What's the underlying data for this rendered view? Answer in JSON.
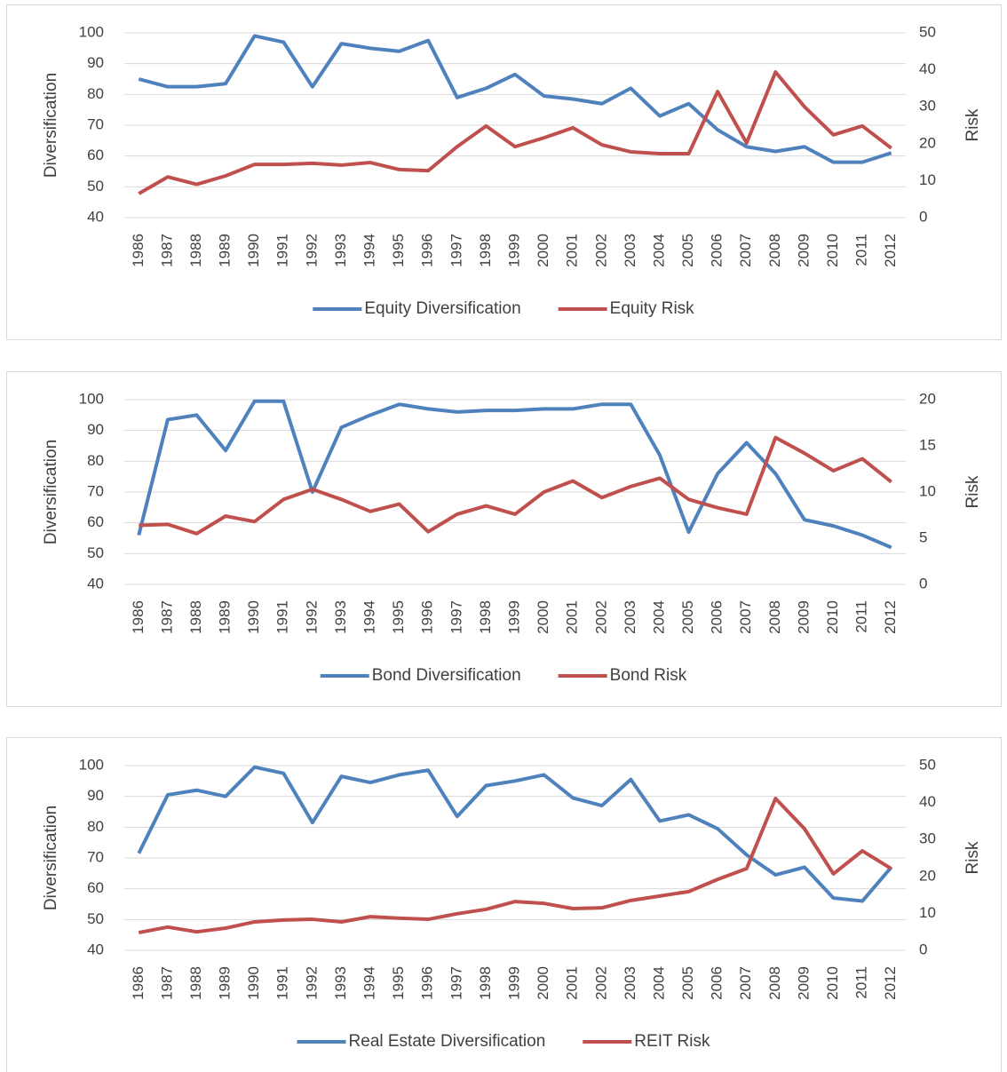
{
  "chart_data": [
    {
      "type": "line",
      "ylabel": "Diversification",
      "y2label": "Risk",
      "categories": [
        "1986",
        "1987",
        "1988",
        "1989",
        "1990",
        "1991",
        "1992",
        "1993",
        "1994",
        "1995",
        "1996",
        "1997",
        "1998",
        "1999",
        "2000",
        "2001",
        "2002",
        "2003",
        "2004",
        "2005",
        "2006",
        "2007",
        "2008",
        "2009",
        "2010",
        "2011",
        "2012"
      ],
      "series": [
        {
          "name": "Equity Diversification",
          "color": "#4f81bd",
          "axis": "y",
          "values": [
            85,
            82.5,
            82.5,
            83.5,
            99,
            97,
            82.5,
            96.5,
            95,
            94,
            97.5,
            79,
            82,
            86.5,
            79.5,
            78.5,
            77,
            82,
            73,
            77,
            68.5,
            63,
            61.5,
            63,
            58,
            58,
            61
          ]
        },
        {
          "name": "Equity Risk",
          "color": "#c0504d",
          "axis": "y2",
          "values": [
            6.5,
            11,
            9,
            11.3,
            14.4,
            14.4,
            14.7,
            14.2,
            14.9,
            13,
            12.7,
            19.2,
            24.8,
            19.2,
            21.6,
            24.3,
            19.7,
            17.8,
            17.3,
            17.3,
            34.1,
            20.2,
            39.4,
            30,
            22.4,
            24.8,
            18.8
          ]
        }
      ],
      "ylim": [
        40,
        100
      ],
      "yticks": [
        40,
        50,
        60,
        70,
        80,
        90,
        100
      ],
      "y2lim": [
        0,
        50
      ],
      "y2ticks": [
        0,
        10,
        20,
        30,
        40,
        50
      ],
      "grid": true,
      "legend": "bottom"
    },
    {
      "type": "line",
      "ylabel": "Diversification",
      "y2label": "Risk",
      "categories": [
        "1986",
        "1987",
        "1988",
        "1989",
        "1990",
        "1991",
        "1992",
        "1993",
        "1994",
        "1995",
        "1996",
        "1997",
        "1998",
        "1999",
        "2000",
        "2001",
        "2002",
        "2003",
        "2004",
        "2005",
        "2006",
        "2007",
        "2008",
        "2009",
        "2010",
        "2011",
        "2012"
      ],
      "series": [
        {
          "name": "Bond Diversification",
          "color": "#4f81bd",
          "axis": "y",
          "values": [
            56,
            93.5,
            95,
            83.5,
            99.5,
            99.5,
            70,
            91,
            95,
            98.5,
            97,
            96,
            96.5,
            96.5,
            97,
            97,
            98.5,
            98.5,
            82,
            57,
            76,
            86,
            76,
            61,
            59,
            56,
            52
          ]
        },
        {
          "name": "Bond Risk",
          "color": "#c0504d",
          "axis": "y2",
          "values": [
            6.4,
            6.5,
            5.5,
            7.4,
            6.8,
            9.2,
            10.3,
            9.2,
            7.9,
            8.7,
            5.7,
            7.6,
            8.5,
            7.6,
            10,
            11.2,
            9.4,
            10.6,
            11.5,
            9.2,
            8.3,
            7.6,
            15.9,
            14.2,
            12.3,
            13.6,
            11.1
          ]
        }
      ],
      "ylim": [
        40,
        100
      ],
      "yticks": [
        40,
        50,
        60,
        70,
        80,
        90,
        100
      ],
      "y2lim": [
        0,
        20
      ],
      "y2ticks": [
        0,
        5,
        10,
        15,
        20
      ],
      "grid": true,
      "legend": "bottom"
    },
    {
      "type": "line",
      "ylabel": "Diversification",
      "y2label": "Risk",
      "categories": [
        "1986",
        "1987",
        "1988",
        "1989",
        "1990",
        "1991",
        "1992",
        "1993",
        "1994",
        "1995",
        "1996",
        "1997",
        "1998",
        "1999",
        "2000",
        "2001",
        "2002",
        "2003",
        "2004",
        "2005",
        "2006",
        "2007",
        "2008",
        "2009",
        "2010",
        "2011",
        "2012"
      ],
      "series": [
        {
          "name": "Real Estate Diversification",
          "color": "#4f81bd",
          "axis": "y",
          "values": [
            71.5,
            90.5,
            92,
            90,
            99.5,
            97.5,
            81.5,
            96.5,
            94.5,
            97,
            98.5,
            83.5,
            93.5,
            95,
            97,
            89.5,
            87,
            95.5,
            82,
            84,
            79.5,
            71,
            64.5,
            67,
            57,
            56,
            67
          ]
        },
        {
          "name": "REIT Risk",
          "color": "#c0504d",
          "axis": "y2",
          "values": [
            4.8,
            6.3,
            5,
            6,
            7.7,
            8.2,
            8.4,
            7.7,
            9.1,
            8.7,
            8.4,
            9.9,
            11.1,
            13.2,
            12.7,
            11.3,
            11.5,
            13.5,
            14.7,
            15.9,
            19.2,
            22.1,
            41.1,
            32.9,
            20.7,
            26.9,
            22.1
          ]
        }
      ],
      "ylim": [
        40,
        100
      ],
      "yticks": [
        40,
        50,
        60,
        70,
        80,
        90,
        100
      ],
      "y2lim": [
        0,
        50
      ],
      "y2ticks": [
        0,
        10,
        20,
        30,
        40,
        50
      ],
      "grid": true,
      "legend": "bottom"
    }
  ]
}
